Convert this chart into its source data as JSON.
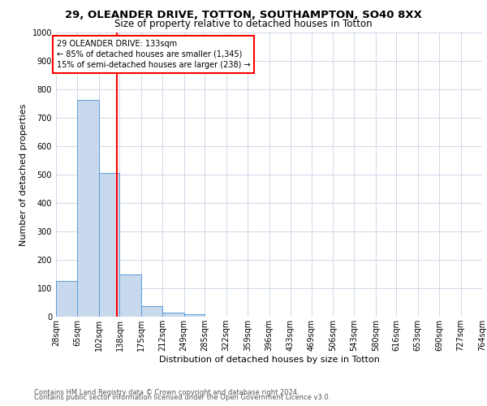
{
  "title1": "29, OLEANDER DRIVE, TOTTON, SOUTHAMPTON, SO40 8XX",
  "title2": "Size of property relative to detached houses in Totton",
  "xlabel": "Distribution of detached houses by size in Totton",
  "ylabel": "Number of detached properties",
  "bar_color": "#c8d9ee",
  "bar_edge_color": "#5b9bd5",
  "grid_color": "#d0d8e8",
  "vline_color": "red",
  "vline_x": 133,
  "annotation_line1": "29 OLEANDER DRIVE: 133sqm",
  "annotation_line2": "← 85% of detached houses are smaller (1,345)",
  "annotation_line3": "15% of semi-detached houses are larger (238) →",
  "bin_edges": [
    28,
    65,
    102,
    138,
    175,
    212,
    249,
    285,
    322,
    359,
    396,
    433,
    469,
    506,
    543,
    580,
    616,
    653,
    690,
    727,
    764
  ],
  "bin_counts": [
    127,
    762,
    507,
    150,
    37,
    14,
    8,
    0,
    0,
    0,
    0,
    0,
    0,
    0,
    0,
    0,
    0,
    0,
    0,
    0
  ],
  "ylim": [
    0,
    1000
  ],
  "yticks": [
    0,
    100,
    200,
    300,
    400,
    500,
    600,
    700,
    800,
    900,
    1000
  ],
  "footer1": "Contains HM Land Registry data © Crown copyright and database right 2024.",
  "footer2": "Contains public sector information licensed under the Open Government Licence v3.0.",
  "bg_color": "#ffffff",
  "title1_fontsize": 9.5,
  "title2_fontsize": 8.5,
  "axis_label_fontsize": 8,
  "tick_fontsize": 7,
  "annotation_fontsize": 7,
  "footer_fontsize": 6
}
